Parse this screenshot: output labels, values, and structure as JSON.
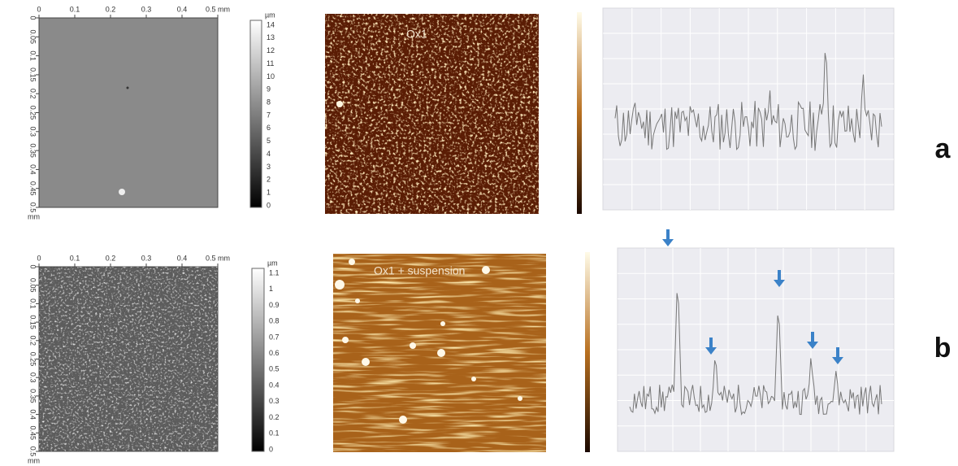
{
  "panels": [
    {
      "label": "a",
      "map": {
        "x_ticks": [
          "0",
          "0.1",
          "0.2",
          "0.3",
          "0.4",
          "0.5 mm"
        ],
        "y_ticks": [
          "0",
          "0.05",
          "0.1",
          "0.15",
          "0.2",
          "0.25",
          "0.3",
          "0.35",
          "0.4",
          "0.45",
          "0.5"
        ],
        "y_unit": "mm"
      },
      "colorbar": {
        "unit": "µm",
        "ticks": [
          "14",
          "13",
          "12",
          "11",
          "10",
          "9",
          "8",
          "7",
          "6",
          "5",
          "4",
          "3",
          "2",
          "1",
          "0"
        ]
      },
      "afm_label": "Ox1"
    },
    {
      "label": "b",
      "map": {
        "x_ticks": [
          "0",
          "0.1",
          "0.2",
          "0.3",
          "0.4",
          "0.5 mm"
        ],
        "y_ticks": [
          "0",
          "0.05",
          "0.1",
          "0.15",
          "0.2",
          "0.25",
          "0.3",
          "0.35",
          "0.4",
          "0.45",
          "0.5"
        ],
        "y_unit": "mm"
      },
      "colorbar": {
        "unit": "µm",
        "ticks": [
          "1.1",
          "1",
          "0.9",
          "0.8",
          "0.7",
          "0.6",
          "0.5",
          "0.4",
          "0.3",
          "0.2",
          "0.1",
          "0"
        ]
      },
      "afm_label": "Ox1 + suspension"
    }
  ]
}
